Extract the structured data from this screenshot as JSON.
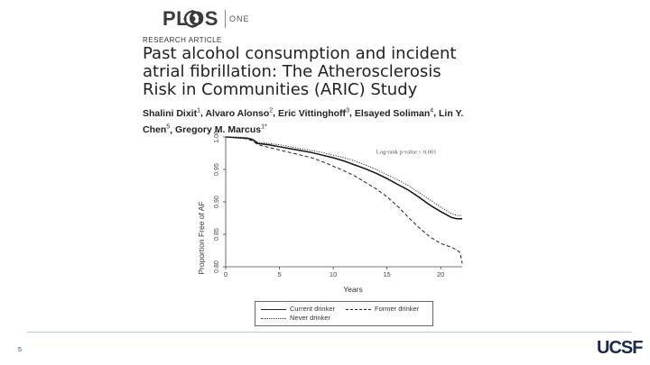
{
  "header": {
    "brand": "PLOS",
    "brand_suffix": "ONE",
    "article_type": "RESEARCH ARTICLE"
  },
  "paper": {
    "title": "Past alcohol consumption and incident atrial fibrillation: The Atherosclerosis Risk in Communities (ARIC) Study",
    "authors": [
      {
        "name": "Shalini Dixit",
        "sup": "1"
      },
      {
        "name": "Alvaro Alonso",
        "sup": "2"
      },
      {
        "name": "Eric Vittinghoff",
        "sup": "3"
      },
      {
        "name": "Elsayed Soliman",
        "sup": "4"
      },
      {
        "name": "Lin Y. Chen",
        "sup": "5"
      },
      {
        "name": "Gregory M. Marcus",
        "sup": "1*"
      }
    ]
  },
  "chart_data": {
    "type": "line",
    "xlabel": "Years",
    "ylabel": "Proportion Free of AF",
    "xlim": [
      0,
      22
    ],
    "ylim": [
      0.8,
      1.0
    ],
    "x_ticks": [
      0,
      5,
      10,
      15,
      20
    ],
    "y_ticks": [
      "0.80",
      "0.85",
      "0.90",
      "0.95",
      "1.00"
    ],
    "annotation": "Log-rank p-value < 0.001",
    "series": [
      {
        "name": "Current drinker",
        "style": "solid",
        "x": [
          0,
          1,
          2,
          2.5,
          3,
          4,
          5,
          6,
          7,
          8,
          9,
          10,
          11,
          12,
          13,
          14,
          15,
          16,
          17,
          18,
          19,
          20,
          21,
          21.5,
          22
        ],
        "y": [
          1.0,
          0.999,
          0.998,
          0.996,
          0.99,
          0.988,
          0.985,
          0.982,
          0.979,
          0.976,
          0.972,
          0.968,
          0.963,
          0.957,
          0.951,
          0.944,
          0.936,
          0.927,
          0.918,
          0.907,
          0.895,
          0.885,
          0.876,
          0.874,
          0.874
        ]
      },
      {
        "name": "Former drinker",
        "style": "dashed",
        "x": [
          0,
          1,
          2,
          2.5,
          3,
          4,
          5,
          6,
          7,
          8,
          9,
          10,
          11,
          12,
          13,
          14,
          15,
          16,
          17,
          18,
          19,
          20,
          21,
          21.5,
          21.8,
          22
        ],
        "y": [
          1.0,
          0.999,
          0.997,
          0.994,
          0.988,
          0.984,
          0.98,
          0.976,
          0.972,
          0.968,
          0.962,
          0.955,
          0.948,
          0.94,
          0.93,
          0.92,
          0.908,
          0.893,
          0.876,
          0.86,
          0.846,
          0.836,
          0.83,
          0.826,
          0.822,
          0.805
        ]
      },
      {
        "name": "Never drinker",
        "style": "dotted",
        "x": [
          0,
          1,
          2,
          2.5,
          3,
          4,
          5,
          6,
          7,
          8,
          9,
          10,
          11,
          12,
          13,
          14,
          15,
          16,
          17,
          18,
          19,
          20,
          21,
          21.5,
          22
        ],
        "y": [
          1.0,
          1.0,
          0.999,
          0.997,
          0.992,
          0.99,
          0.988,
          0.985,
          0.982,
          0.979,
          0.976,
          0.972,
          0.968,
          0.963,
          0.957,
          0.95,
          0.942,
          0.934,
          0.925,
          0.914,
          0.903,
          0.892,
          0.882,
          0.879,
          0.879
        ]
      }
    ]
  },
  "legend": {
    "current": "Current drinker",
    "former": "Former drinker",
    "never": "Never drinker"
  },
  "footer": {
    "page_number": "5",
    "logo": "UCSF"
  }
}
